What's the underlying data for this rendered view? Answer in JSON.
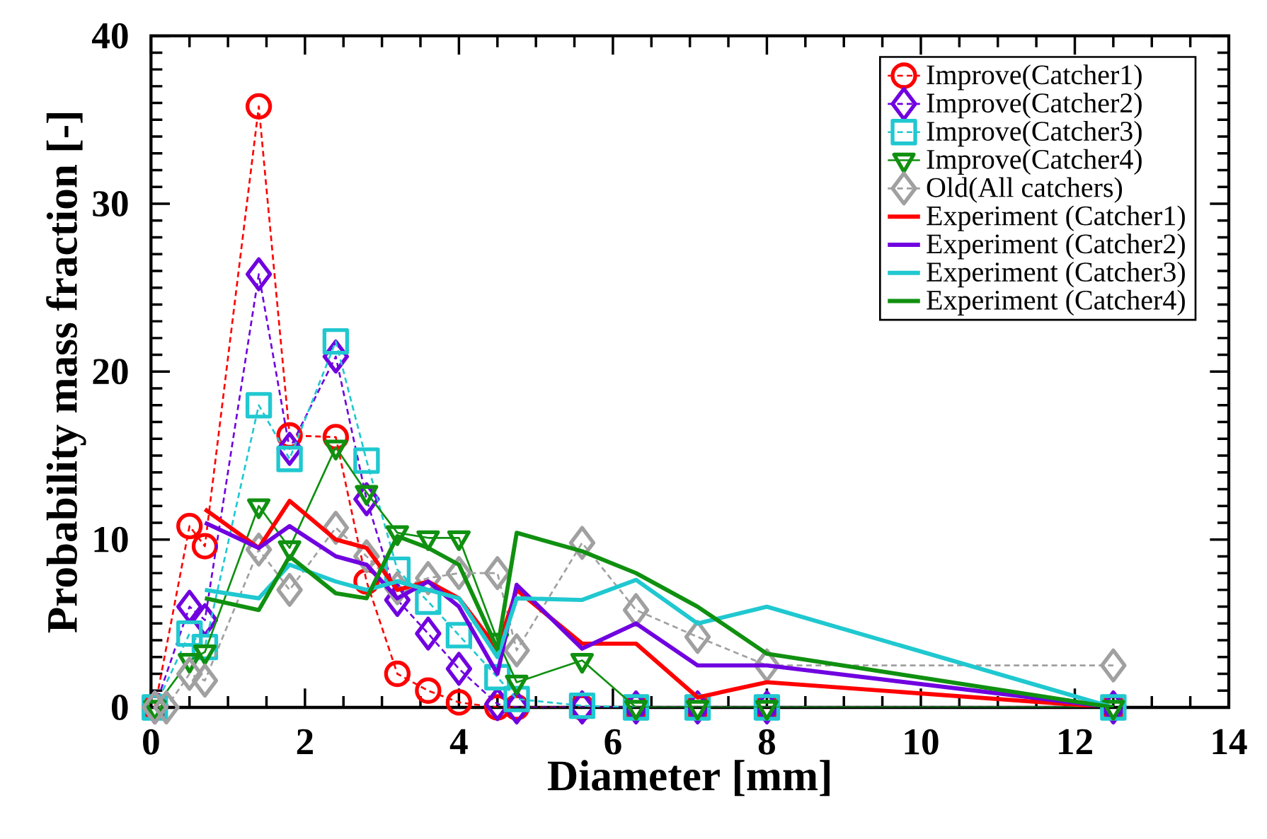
{
  "chart_data": {
    "type": "line",
    "xlabel": "Diameter [mm]",
    "ylabel": "Probability mass fraction [-]",
    "xlim": [
      0,
      14
    ],
    "ylim": [
      0,
      40
    ],
    "xticks": [
      0,
      2,
      4,
      6,
      8,
      10,
      12,
      14
    ],
    "yticks": [
      0,
      10,
      20,
      30,
      40
    ],
    "grid": false,
    "legend": "top right",
    "series": [
      {
        "name": "Improve(Catcher1)",
        "color": "#ff0000",
        "marker": "circle",
        "line_style": "dashed",
        "x": [
          0.05,
          0.5,
          0.7,
          1.4,
          1.8,
          2.4,
          2.8,
          3.2,
          3.6,
          4.0,
          4.5,
          4.75,
          5.6,
          6.3,
          7.1,
          8.0,
          12.5
        ],
        "values": [
          0,
          10.8,
          9.6,
          35.8,
          16.2,
          16.1,
          7.5,
          2.0,
          1.0,
          0.3,
          0,
          0,
          0,
          0,
          0,
          0,
          0
        ]
      },
      {
        "name": "Improve(Catcher2)",
        "color": "#7000e0",
        "marker": "diamond",
        "line_style": "dashed",
        "x": [
          0.05,
          0.5,
          0.7,
          1.4,
          1.8,
          2.4,
          2.8,
          3.2,
          3.6,
          4.0,
          4.5,
          4.75,
          5.6,
          6.3,
          7.1,
          8.0,
          12.5
        ],
        "values": [
          0,
          6.0,
          5.2,
          25.8,
          15.4,
          20.9,
          12.4,
          6.4,
          4.4,
          2.3,
          0.2,
          0,
          0,
          0,
          0,
          0,
          0
        ]
      },
      {
        "name": "Improve(Catcher3)",
        "color": "#20c8d0",
        "marker": "square",
        "line_style": "dashed",
        "x": [
          0.05,
          0.5,
          0.7,
          1.4,
          1.8,
          2.4,
          2.8,
          3.2,
          3.6,
          4.0,
          4.5,
          4.75,
          5.6,
          6.3,
          7.1,
          8.0,
          12.5
        ],
        "values": [
          0,
          4.4,
          3.6,
          18.0,
          14.8,
          21.8,
          14.7,
          8.2,
          6.3,
          4.3,
          1.8,
          0.5,
          0.1,
          0,
          0,
          0,
          0
        ]
      },
      {
        "name": "Improve(Catcher4)",
        "color": "#109010",
        "marker": "triangle",
        "line_style": "solid",
        "x": [
          0.05,
          0.5,
          0.7,
          1.4,
          1.8,
          2.4,
          2.8,
          3.2,
          3.6,
          4.0,
          4.5,
          4.75,
          5.6,
          6.3,
          7.1,
          8.0,
          12.5
        ],
        "values": [
          0,
          2.8,
          3.3,
          12.0,
          9.5,
          15.5,
          12.8,
          10.4,
          10.1,
          10.1,
          4.0,
          1.5,
          2.8,
          0,
          0,
          0,
          0
        ]
      },
      {
        "name": "Old(All catchers)",
        "color": "#a0a0a0",
        "marker": "diamond",
        "line_style": "dashed",
        "x": [
          0.05,
          0.2,
          0.5,
          0.7,
          1.4,
          1.8,
          2.4,
          2.8,
          3.2,
          3.6,
          4.0,
          4.5,
          4.75,
          5.6,
          6.3,
          7.1,
          8.0,
          12.5
        ],
        "values": [
          0,
          0,
          2.0,
          1.6,
          9.4,
          7.0,
          10.7,
          9.0,
          7.1,
          7.7,
          8.0,
          8.0,
          3.4,
          9.8,
          5.8,
          4.2,
          2.5,
          2.5
        ]
      },
      {
        "name": "Experiment (Catcher1)",
        "color": "#ff0000",
        "marker": "none",
        "line_style": "solid",
        "x": [
          0.7,
          1.4,
          1.8,
          2.4,
          2.8,
          3.2,
          3.6,
          4.0,
          4.5,
          4.75,
          5.6,
          6.3,
          7.1,
          8.0,
          12.5
        ],
        "values": [
          11.8,
          9.5,
          12.3,
          10.0,
          9.5,
          7.0,
          7.5,
          6.5,
          3.5,
          7.0,
          3.8,
          3.8,
          0.6,
          1.5,
          0
        ]
      },
      {
        "name": "Experiment (Catcher2)",
        "color": "#7000e0",
        "marker": "none",
        "line_style": "solid",
        "x": [
          0.7,
          1.4,
          1.8,
          2.4,
          2.8,
          3.2,
          3.6,
          4.0,
          4.5,
          4.75,
          5.6,
          6.3,
          7.1,
          8.0,
          12.5
        ],
        "values": [
          11.0,
          9.5,
          10.8,
          9.0,
          8.5,
          6.5,
          7.5,
          6.0,
          2.0,
          7.3,
          3.5,
          5.0,
          2.5,
          2.5,
          0
        ]
      },
      {
        "name": "Experiment (Catcher3)",
        "color": "#20c8d0",
        "marker": "none",
        "line_style": "solid",
        "x": [
          0.7,
          1.4,
          1.8,
          2.4,
          2.8,
          3.2,
          3.6,
          4.0,
          4.5,
          4.75,
          5.6,
          6.3,
          7.1,
          8.0,
          12.5
        ],
        "values": [
          7.0,
          6.5,
          8.5,
          7.5,
          7.0,
          7.5,
          7.0,
          6.5,
          3.0,
          6.5,
          6.4,
          7.6,
          5.0,
          6.0,
          0
        ]
      },
      {
        "name": "Experiment (Catcher4)",
        "color": "#109010",
        "marker": "none",
        "line_style": "solid",
        "x": [
          0.7,
          1.4,
          1.8,
          2.4,
          2.8,
          3.2,
          3.6,
          4.0,
          4.5,
          4.75,
          5.6,
          6.3,
          7.1,
          8.0,
          12.5
        ],
        "values": [
          6.5,
          5.8,
          9.0,
          6.8,
          6.5,
          10.2,
          9.5,
          8.5,
          3.5,
          10.4,
          9.3,
          8.0,
          6.0,
          3.2,
          0
        ]
      }
    ]
  }
}
